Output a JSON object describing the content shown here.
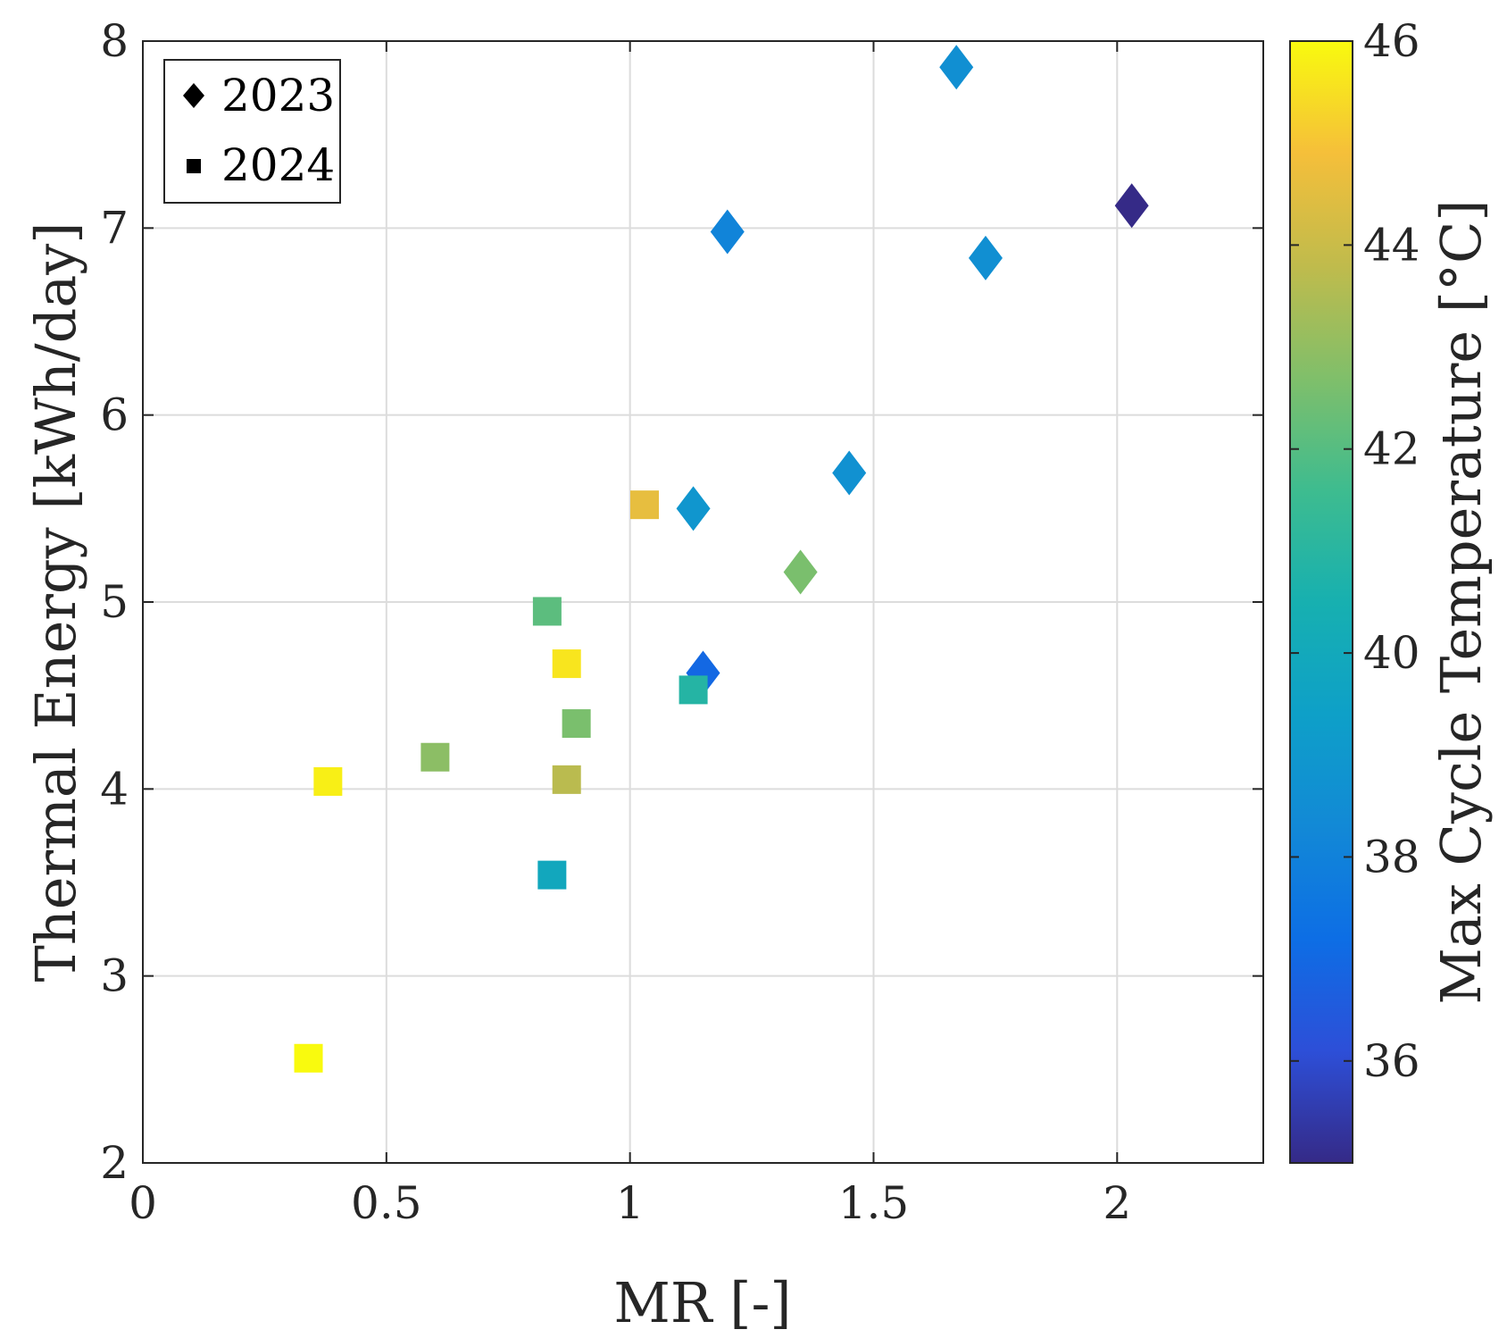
{
  "chart_data": {
    "type": "scatter",
    "xlabel": "MR [-]",
    "ylabel": "Thermal Energy [kWh/day]",
    "xlim": [
      0,
      2.3
    ],
    "ylim": [
      2,
      8
    ],
    "xticks": [
      0,
      0.5,
      1,
      1.5,
      2
    ],
    "xtick_labels": [
      "0",
      "0.5",
      "1",
      "1.5",
      "2"
    ],
    "yticks": [
      2,
      3,
      4,
      5,
      6,
      7,
      8
    ],
    "ytick_labels": [
      "2",
      "3",
      "4",
      "5",
      "6",
      "7",
      "8"
    ],
    "grid": true,
    "legend": {
      "position": "top-left",
      "entries": [
        {
          "label": "2023",
          "marker": "diamond"
        },
        {
          "label": "2024",
          "marker": "square"
        }
      ]
    },
    "colorbar": {
      "label": "Max Cycle Temperature [°C]",
      "range": [
        35,
        46
      ],
      "ticks": [
        36,
        38,
        40,
        42,
        44,
        46
      ],
      "tick_labels": [
        "36",
        "38",
        "40",
        "42",
        "44",
        "46"
      ],
      "colormap": "parula"
    },
    "series": [
      {
        "name": "2023",
        "marker": "diamond",
        "points": [
          {
            "x": 1.67,
            "y": 7.86,
            "c": 38.6
          },
          {
            "x": 2.03,
            "y": 7.12,
            "c": 35.0
          },
          {
            "x": 1.2,
            "y": 6.98,
            "c": 38.1
          },
          {
            "x": 1.73,
            "y": 6.84,
            "c": 38.6
          },
          {
            "x": 1.45,
            "y": 5.69,
            "c": 38.7
          },
          {
            "x": 1.13,
            "y": 5.5,
            "c": 38.9
          },
          {
            "x": 1.35,
            "y": 5.16,
            "c": 42.6
          },
          {
            "x": 1.15,
            "y": 4.62,
            "c": 37.0
          }
        ]
      },
      {
        "name": "2024",
        "marker": "square",
        "points": [
          {
            "x": 1.03,
            "y": 5.52,
            "c": 44.6
          },
          {
            "x": 0.83,
            "y": 4.95,
            "c": 42.1
          },
          {
            "x": 0.87,
            "y": 4.67,
            "c": 45.6
          },
          {
            "x": 1.13,
            "y": 4.53,
            "c": 40.9
          },
          {
            "x": 0.89,
            "y": 4.35,
            "c": 42.6
          },
          {
            "x": 0.6,
            "y": 4.17,
            "c": 42.9
          },
          {
            "x": 0.38,
            "y": 4.04,
            "c": 45.8
          },
          {
            "x": 0.87,
            "y": 4.05,
            "c": 43.7
          },
          {
            "x": 0.84,
            "y": 3.54,
            "c": 39.9
          },
          {
            "x": 0.34,
            "y": 2.56,
            "c": 46.0
          }
        ]
      }
    ]
  }
}
